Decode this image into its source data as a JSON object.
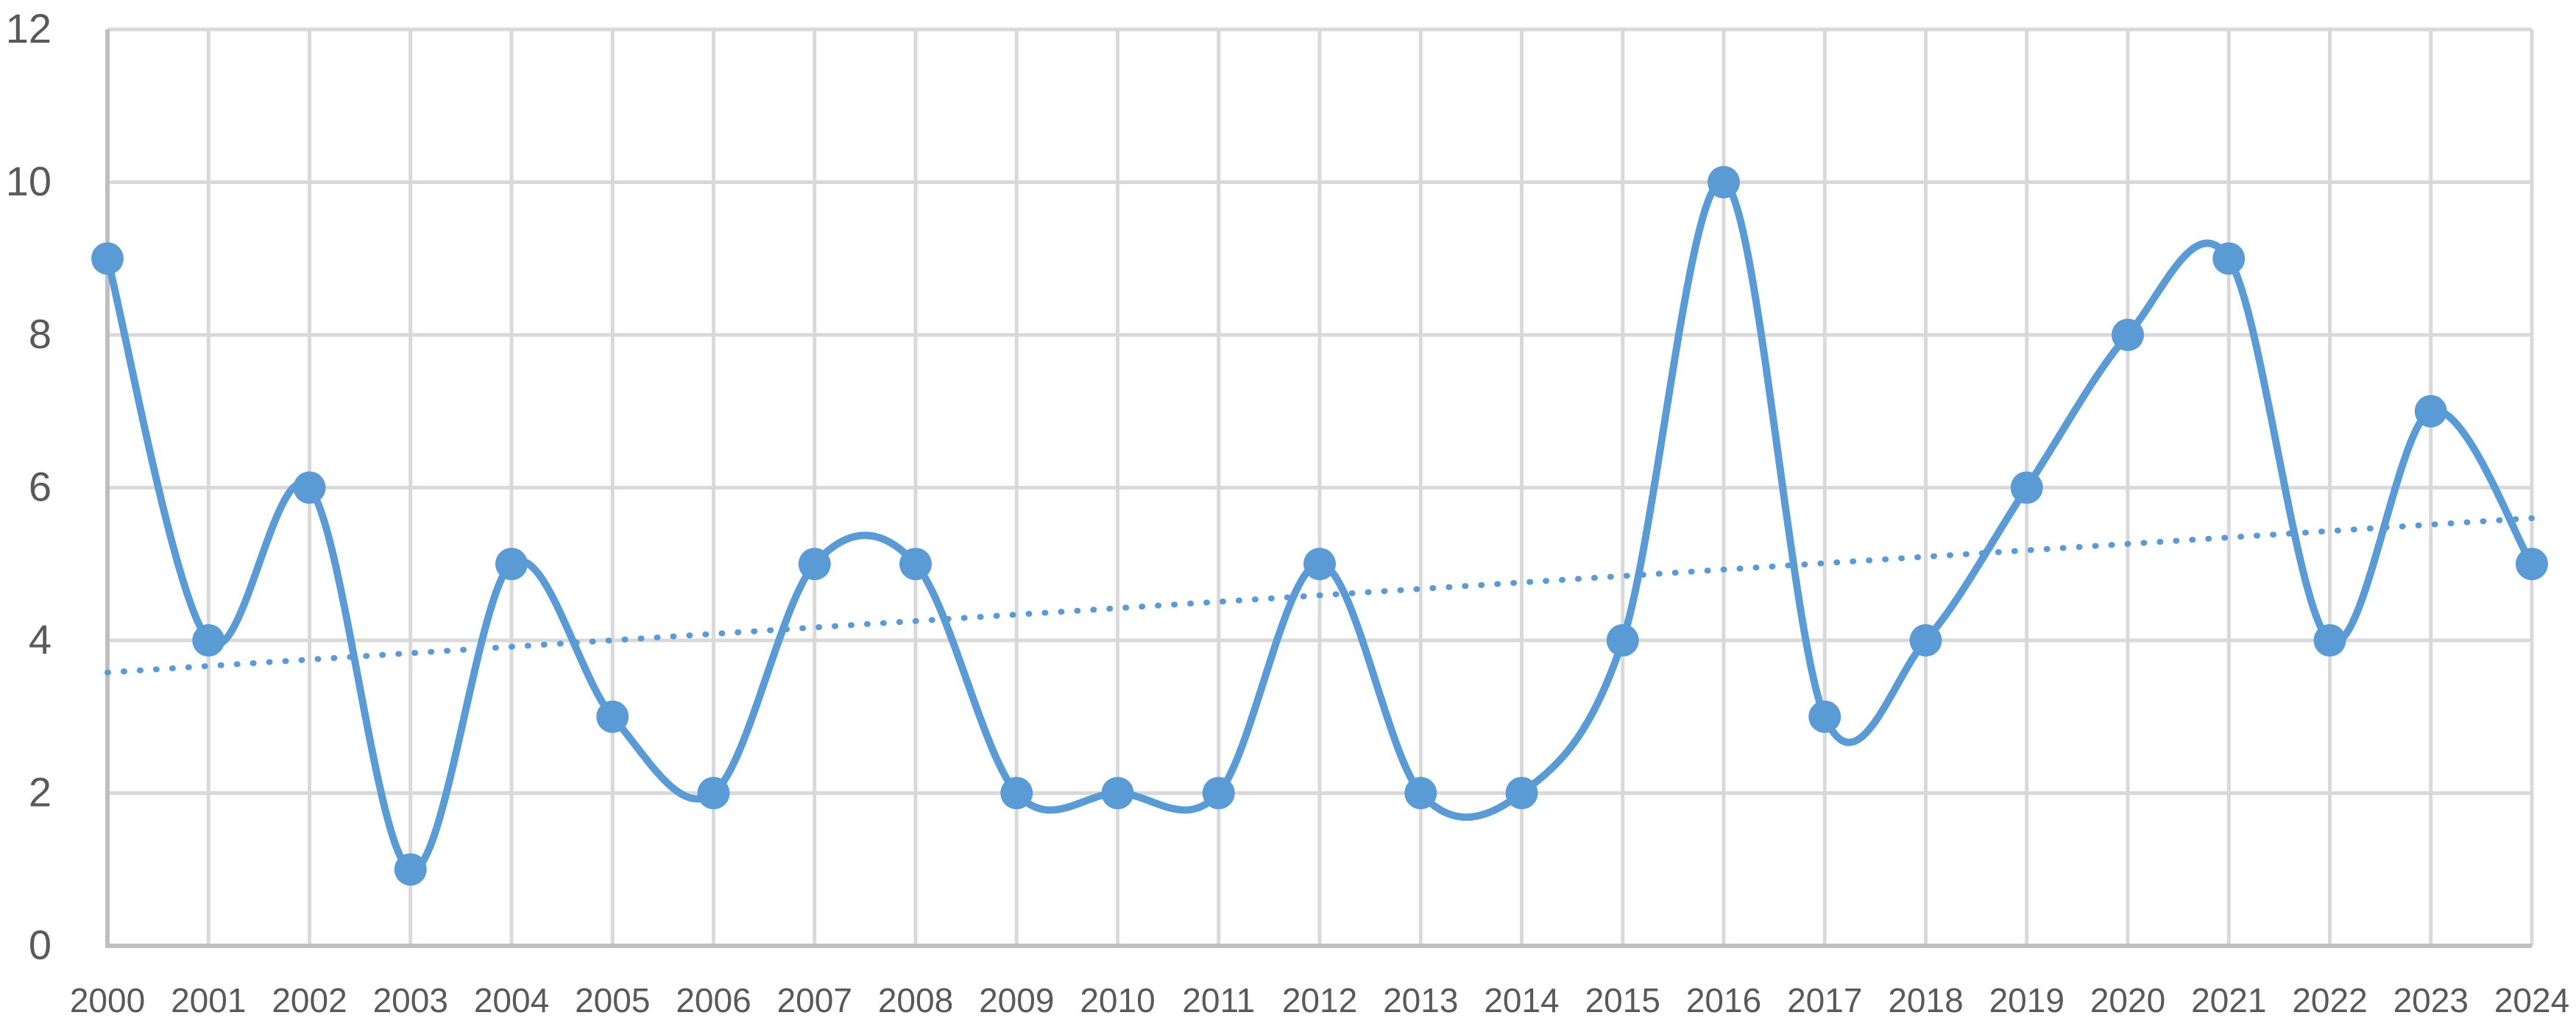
{
  "chart_data": {
    "type": "line",
    "title": "",
    "xlabel": "",
    "ylabel": "",
    "categories": [
      "2000",
      "2001",
      "2002",
      "2003",
      "2004",
      "2005",
      "2006",
      "2007",
      "2008",
      "2009",
      "2010",
      "2011",
      "2012",
      "2013",
      "2014",
      "2015",
      "2016",
      "2017",
      "2018",
      "2019",
      "2020",
      "2021",
      "2022",
      "2023",
      "2024"
    ],
    "series": [
      {
        "name": "Series 1",
        "color": "#5B9BD5",
        "smoothed": true,
        "markers": true,
        "values": [
          9,
          4,
          6,
          1,
          5,
          3,
          2,
          5,
          5,
          2,
          2,
          2,
          5,
          2,
          2,
          4,
          10,
          3,
          4,
          6,
          8,
          9,
          4,
          7,
          5
        ]
      }
    ],
    "trendline": {
      "type": "linear",
      "style": "dotted",
      "color": "#5B9BD5",
      "start": 3.58,
      "end": 5.6
    },
    "ylim": [
      0,
      12
    ],
    "yticks": [
      0,
      2,
      4,
      6,
      8,
      10,
      12
    ],
    "grid": {
      "horizontal": true,
      "vertical": true,
      "color": "#D9D9D9"
    },
    "legend": "none"
  }
}
